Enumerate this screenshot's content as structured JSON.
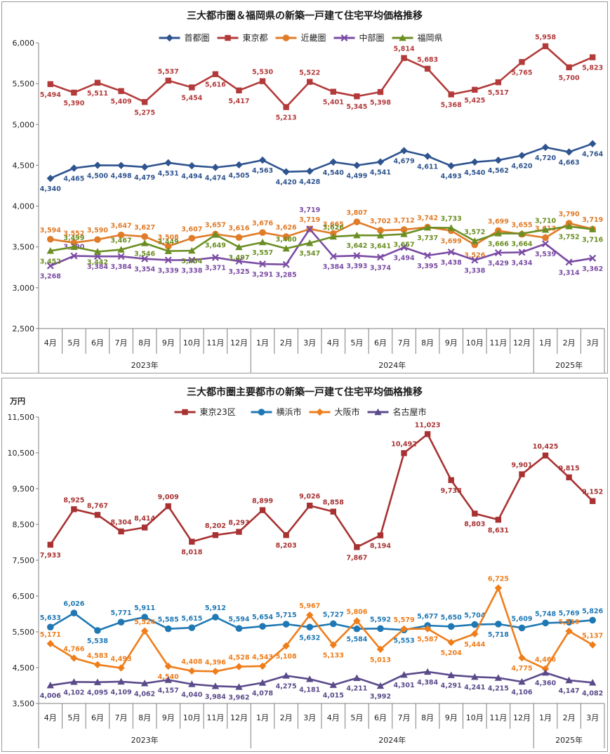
{
  "chart_data": [
    {
      "type": "line",
      "title": "三大都市圏＆福岡県の新築一戸建て住宅平均価格推移",
      "unit": "",
      "ylim": [
        2500,
        6000
      ],
      "yticks": [
        2500,
        3000,
        3500,
        4000,
        4500,
        5000,
        5500,
        6000
      ],
      "ytick_labels": [
        "2,500",
        "3,000",
        "3,500",
        "4,000",
        "4,500",
        "5,000",
        "5,500",
        "6,000"
      ],
      "categories": [
        "4月",
        "5月",
        "6月",
        "7月",
        "8月",
        "9月",
        "10月",
        "11月",
        "12月",
        "1月",
        "2月",
        "3月",
        "4月",
        "5月",
        "6月",
        "7月",
        "8月",
        "9月",
        "10月",
        "11月",
        "12月",
        "1月",
        "2月",
        "3月"
      ],
      "years": [
        {
          "label": "2023年",
          "start": 0,
          "end": 9
        },
        {
          "label": "2024年",
          "start": 9,
          "end": 21
        },
        {
          "label": "2025年",
          "start": 21,
          "end": 24
        }
      ],
      "legend_position": "top",
      "grid": false,
      "series": [
        {
          "name": "首都圏",
          "color": "#2e548f",
          "marker": "diamond",
          "values": [
            4340,
            4465,
            4500,
            4498,
            4479,
            4531,
            4494,
            4474,
            4505,
            4563,
            4420,
            4428,
            4540,
            4499,
            4541,
            4679,
            4611,
            4493,
            4540,
            4562,
            4620,
            4720,
            4663,
            4764
          ],
          "labels": [
            "4,340",
            "4,465",
            "4,500",
            "4,498",
            "4,479",
            "4,531",
            "4,494",
            "4,474",
            "4,505",
            "4,563",
            "4,420",
            "4,428",
            "4,540",
            "4,499",
            "4,541",
            "4,679",
            "4,611",
            "4,493",
            "4,540",
            "4,562",
            "4,620",
            "4,720",
            "4,663",
            "4,764"
          ],
          "label_dy": [
            18,
            18,
            18,
            18,
            18,
            18,
            18,
            18,
            18,
            18,
            18,
            18,
            18,
            18,
            18,
            18,
            18,
            18,
            18,
            18,
            18,
            18,
            18,
            18
          ]
        },
        {
          "name": "東京都",
          "color": "#b33a3a",
          "marker": "square",
          "values": [
            5494,
            5390,
            5511,
            5409,
            5275,
            5537,
            5454,
            5616,
            5417,
            5530,
            5213,
            5522,
            5401,
            5345,
            5398,
            5814,
            5683,
            5368,
            5425,
            5517,
            5765,
            5958,
            5700,
            5823
          ],
          "labels": [
            "5,494",
            "5,390",
            "5,511",
            "5,409",
            "5,275",
            "5,537",
            "5,454",
            "5,616",
            "5,417",
            "5,530",
            "5,213",
            "5,522",
            "5,401",
            "5,345",
            "5,398",
            "5,814",
            "5,683",
            "5,368",
            "5,425",
            "5,517",
            "5,765",
            "5,958",
            "5,700",
            "5,823"
          ],
          "label_dy": [
            18,
            18,
            18,
            18,
            18,
            -10,
            18,
            18,
            18,
            -10,
            18,
            -10,
            18,
            18,
            18,
            -10,
            -10,
            18,
            18,
            18,
            18,
            -10,
            18,
            18
          ]
        },
        {
          "name": "近畿圏",
          "color": "#e07b28",
          "marker": "circle",
          "values": [
            3594,
            3552,
            3590,
            3647,
            3627,
            3508,
            3607,
            3657,
            3616,
            3676,
            3626,
            3719,
            3665,
            3807,
            3702,
            3712,
            3742,
            3699,
            3526,
            3699,
            3655,
            3613,
            3790,
            3719
          ],
          "labels": [
            "3,594",
            "3,552",
            "3,590",
            "3,647",
            "3,627",
            "3,508",
            "3,607",
            "3,657",
            "3,616",
            "3,676",
            "3,626",
            "3,719",
            "3,665",
            "3,807",
            "3,702",
            "3,712",
            "3,742",
            "3,699",
            "3,526",
            "3,699",
            "3,655",
            "3,613",
            "3,790",
            "3,719"
          ],
          "label_dy": [
            -10,
            -10,
            -10,
            -10,
            -10,
            -10,
            -10,
            -10,
            -10,
            -10,
            -10,
            -10,
            -10,
            -10,
            -10,
            -10,
            -10,
            18,
            18,
            -10,
            -10,
            -10,
            -10,
            -10
          ]
        },
        {
          "name": "中部圏",
          "color": "#7a4ba3",
          "marker": "x",
          "values": [
            3268,
            3390,
            3384,
            3384,
            3354,
            3339,
            3338,
            3371,
            3325,
            3291,
            3285,
            3719,
            3384,
            3393,
            3374,
            3494,
            3395,
            3438,
            3338,
            3429,
            3434,
            3539,
            3314,
            3362
          ],
          "labels": [
            "3,268",
            "3,390",
            "3,384",
            "3,384",
            "3,354",
            "3,339",
            "3,338",
            "3,371",
            "3,325",
            "3,291",
            "3,285",
            "3,719",
            "3,384",
            "3,393",
            "3,374",
            "3,494",
            "3,395",
            "3,438",
            "3,338",
            "3,429",
            "3,434",
            "3,539",
            "3,314",
            "3,362"
          ],
          "label_dy": [
            18,
            -10,
            18,
            18,
            18,
            18,
            18,
            18,
            18,
            18,
            18,
            -24,
            18,
            18,
            18,
            18,
            18,
            18,
            18,
            18,
            18,
            18,
            18,
            18
          ]
        },
        {
          "name": "福岡県",
          "color": "#6b8e23",
          "marker": "triangle",
          "values": [
            3452,
            3499,
            3442,
            3467,
            3546,
            3449,
            3454,
            3649,
            3497,
            3557,
            3480,
            3547,
            3626,
            3642,
            3641,
            3657,
            3737,
            3733,
            3572,
            3666,
            3664,
            3710,
            3752,
            3716
          ],
          "labels": [
            "3,452",
            "3,499",
            "3,442",
            "3,467",
            "3,546",
            "3,449",
            "3,454",
            "3,649",
            "3,497",
            "3,557",
            "3,480",
            "3,547",
            "3,626",
            "3,642",
            "3,641",
            "3,657",
            "3,737",
            "3,733",
            "3,572",
            "3,666",
            "3,664",
            "3,710",
            "3,752",
            "3,716"
          ],
          "label_dy": [
            18,
            -10,
            18,
            -10,
            18,
            -10,
            18,
            18,
            18,
            18,
            -10,
            18,
            -10,
            18,
            18,
            18,
            18,
            -10,
            -10,
            18,
            18,
            -10,
            18,
            18
          ]
        }
      ]
    },
    {
      "type": "line",
      "title": "三大都市圏主要都市の新築一戸建て住宅平均価格推移",
      "unit": "万円",
      "ylim": [
        3500,
        11500
      ],
      "yticks": [
        3500,
        4500,
        5500,
        6500,
        7500,
        8500,
        9500,
        10500,
        11500
      ],
      "ytick_labels": [
        "3,500",
        "4,500",
        "5,500",
        "6,500",
        "7,500",
        "8,500",
        "9,500",
        "10,500",
        "11,500"
      ],
      "categories": [
        "4月",
        "5月",
        "6月",
        "7月",
        "8月",
        "9月",
        "10月",
        "11月",
        "12月",
        "1月",
        "2月",
        "3月",
        "4月",
        "5月",
        "6月",
        "7月",
        "8月",
        "9月",
        "10月",
        "11月",
        "12月",
        "1月",
        "2月",
        "3月"
      ],
      "years": [
        {
          "label": "2023年",
          "start": 0,
          "end": 9
        },
        {
          "label": "2024年",
          "start": 9,
          "end": 21
        },
        {
          "label": "2025年",
          "start": 21,
          "end": 24
        }
      ],
      "legend_position": "top",
      "grid": false,
      "series": [
        {
          "name": "東京23区",
          "color": "#a83232",
          "marker": "square",
          "values": [
            7933,
            8925,
            8767,
            8304,
            8414,
            9009,
            8018,
            8202,
            8293,
            8899,
            8203,
            9026,
            8858,
            7867,
            8194,
            10492,
            11023,
            9738,
            8803,
            8631,
            9901,
            10425,
            9815,
            9152
          ],
          "labels": [
            "7,933",
            "8,925",
            "8,767",
            "8,304",
            "8,414",
            "9,009",
            "8,018",
            "8,202",
            "8,293",
            "8,899",
            "8,203",
            "9,026",
            "8,858",
            "7,867",
            "8,194",
            "10,492",
            "11,023",
            "9,738",
            "8,803",
            "8,631",
            "9,901",
            "10,425",
            "9,815",
            "9,152"
          ],
          "label_dy": [
            18,
            -10,
            -10,
            -10,
            -10,
            -10,
            18,
            -10,
            -10,
            -10,
            18,
            -10,
            -10,
            18,
            18,
            -10,
            -10,
            18,
            18,
            18,
            -10,
            -10,
            -10,
            -10
          ]
        },
        {
          "name": "横浜市",
          "color": "#1f78b4",
          "marker": "circle",
          "values": [
            5633,
            6026,
            5538,
            5771,
            5911,
            5585,
            5615,
            5912,
            5594,
            5654,
            5715,
            5632,
            5727,
            5584,
            5592,
            5553,
            5677,
            5650,
            5704,
            5718,
            5609,
            5748,
            5769,
            5826
          ],
          "labels": [
            "5,633",
            "6,026",
            "5,538",
            "5,771",
            "5,911",
            "5,585",
            "5,615",
            "5,912",
            "5,594",
            "5,654",
            "5,715",
            "5,632",
            "5,727",
            "5,584",
            "5,592",
            "5,553",
            "5,677",
            "5,650",
            "5,704",
            "5,718",
            "5,609",
            "5,748",
            "5,769",
            "5,826"
          ],
          "label_dy": [
            -10,
            -10,
            18,
            -10,
            -10,
            -10,
            -10,
            -10,
            -10,
            -10,
            -10,
            18,
            -10,
            18,
            -10,
            18,
            -10,
            -10,
            -10,
            18,
            -10,
            -10,
            -10,
            -10
          ]
        },
        {
          "name": "大阪市",
          "color": "#ef7d1a",
          "marker": "diamond",
          "values": [
            5171,
            4766,
            4583,
            4493,
            5524,
            4540,
            4408,
            4396,
            4528,
            4543,
            5108,
            5967,
            5133,
            5806,
            5013,
            5579,
            5587,
            5204,
            5444,
            6725,
            4775,
            4466,
            5519,
            5137
          ],
          "labels": [
            "5,171",
            "4,766",
            "4,583",
            "4,493",
            "5,524",
            "4,540",
            "4,408",
            "4,396",
            "4,528",
            "4,543",
            "5,108",
            "5,967",
            "5,133",
            "5,806",
            "5,013",
            "5,579",
            "5,587",
            "5,204",
            "5,444",
            "6,725",
            "4,775",
            "4,466",
            "5,519",
            "5,137"
          ],
          "label_dy": [
            -10,
            -10,
            -10,
            -10,
            -10,
            18,
            -10,
            -10,
            -10,
            -10,
            18,
            -10,
            18,
            -10,
            18,
            -10,
            18,
            18,
            18,
            -10,
            18,
            -10,
            -10,
            -10
          ]
        },
        {
          "name": "名古屋市",
          "color": "#5a4a8a",
          "marker": "triangle",
          "values": [
            4006,
            4102,
            4095,
            4109,
            4062,
            4157,
            4040,
            3984,
            3962,
            4078,
            4275,
            4181,
            4015,
            4211,
            3992,
            4301,
            4384,
            4291,
            4241,
            4215,
            4106,
            4360,
            4147,
            4082
          ],
          "labels": [
            "4,006",
            "4,102",
            "4,095",
            "4,109",
            "4,062",
            "4,157",
            "4,040",
            "3,984",
            "3,962",
            "4,078",
            "4,275",
            "4,181",
            "4,015",
            "4,211",
            "3,992",
            "4,301",
            "4,384",
            "4,291",
            "4,241",
            "4,215",
            "4,106",
            "4,360",
            "4,147",
            "4,082"
          ],
          "label_dy": [
            18,
            18,
            18,
            18,
            18,
            18,
            18,
            18,
            18,
            18,
            18,
            18,
            18,
            18,
            18,
            18,
            18,
            18,
            18,
            18,
            18,
            18,
            18,
            18
          ]
        }
      ]
    }
  ]
}
